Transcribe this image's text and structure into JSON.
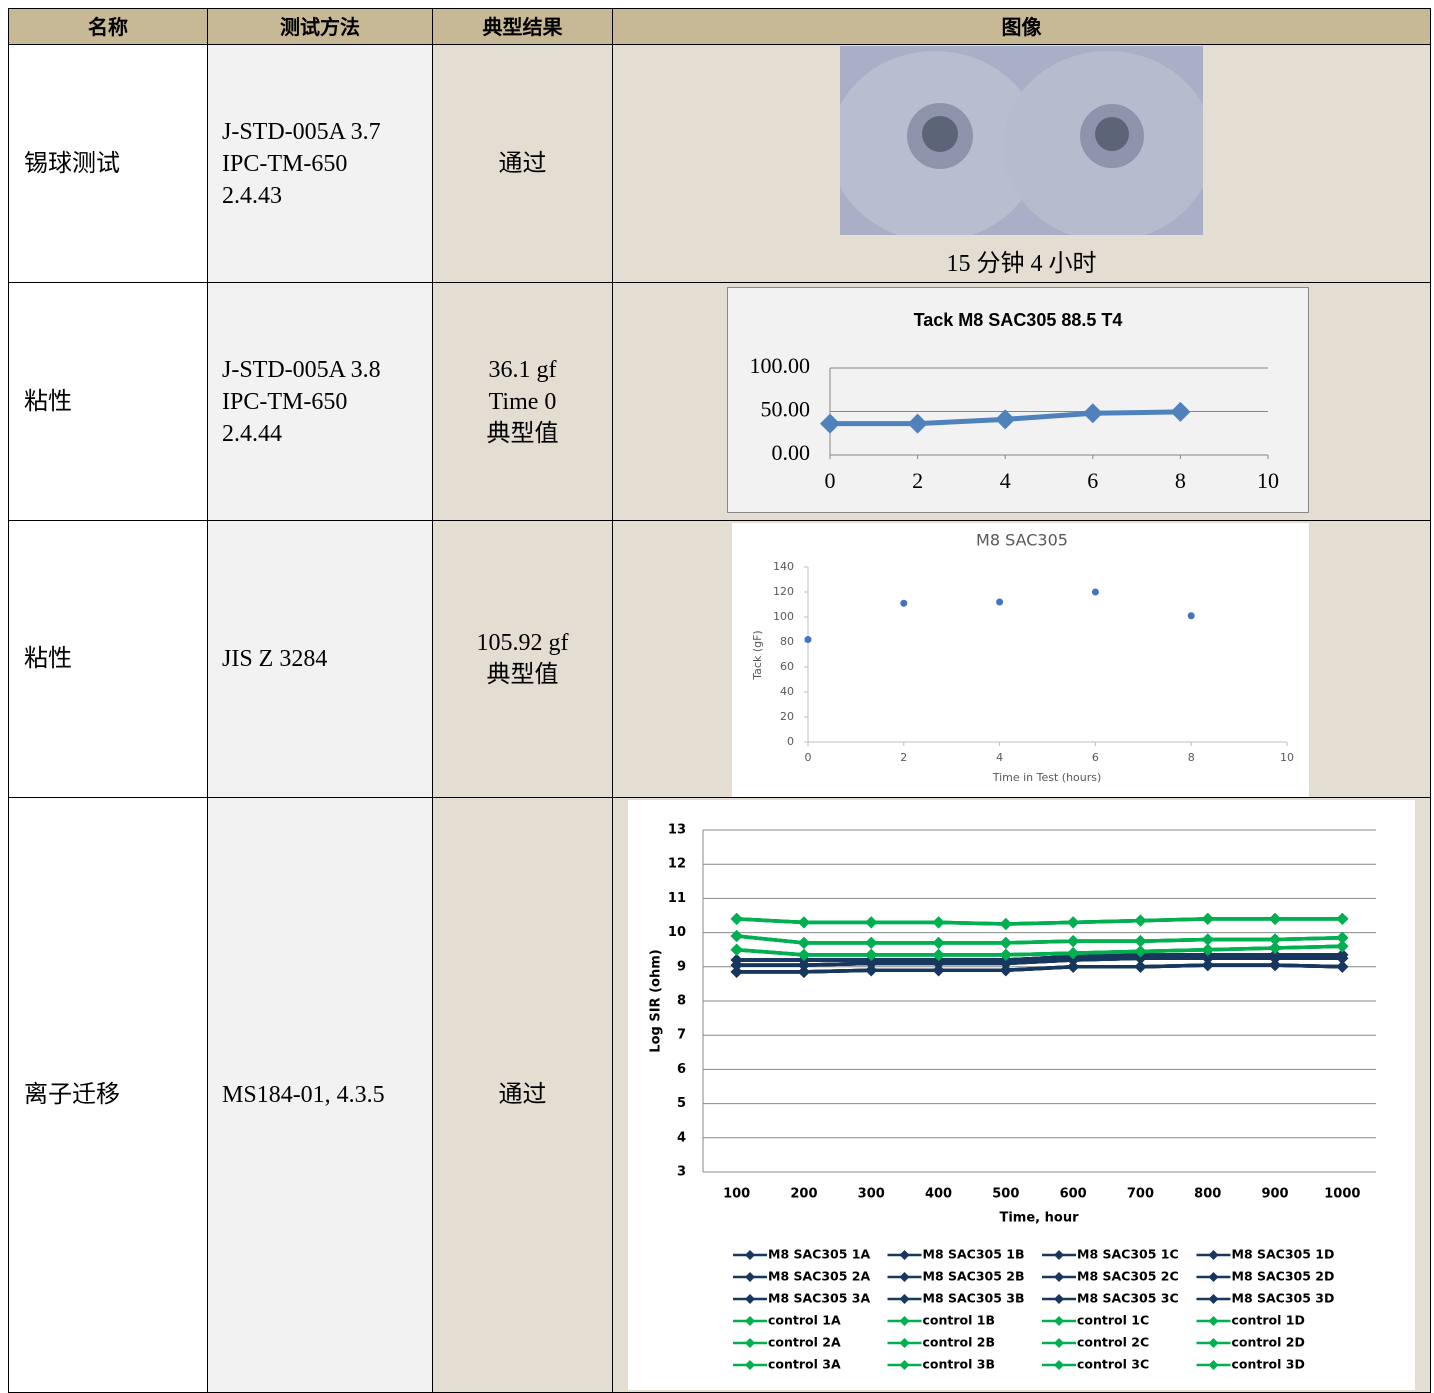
{
  "table": {
    "headers": [
      "名称",
      "测试方法",
      "典型结果",
      "图像"
    ],
    "rows": [
      {
        "name": "锡球测试",
        "method": [
          "J-STD-005A 3.7",
          "IPC-TM-650",
          "2.4.43"
        ],
        "result": [
          "通过"
        ],
        "image_caption": "15 分钟 4 小时"
      },
      {
        "name": "粘性",
        "method": [
          "J-STD-005A 3.8",
          "IPC-TM-650",
          "2.4.44"
        ],
        "result": [
          "36.1 gf",
          "Time 0",
          "典型值"
        ]
      },
      {
        "name": "粘性",
        "method": [
          "JIS Z 3284"
        ],
        "result": [
          "105.92 gf",
          "典型值"
        ]
      },
      {
        "name": "离子迁移",
        "method": [
          "MS184-01, 4.3.5"
        ],
        "result": [
          "通过"
        ]
      }
    ]
  },
  "chart_data": [
    {
      "type": "line",
      "title": "Tack M8 SAC305 88.5 T4",
      "x": [
        0,
        2,
        4,
        6,
        8
      ],
      "values": [
        36.1,
        36,
        41,
        48,
        49.5
      ],
      "color": "#4f81bd",
      "marker": "diamond",
      "xlim": [
        0,
        10
      ],
      "xticks": [
        0,
        2,
        4,
        6,
        8,
        10
      ],
      "ylim": [
        0,
        100
      ],
      "yticks": [
        {
          "value": 0,
          "label": "0.00"
        },
        {
          "value": 50,
          "label": "50.00"
        },
        {
          "value": 100,
          "label": "100.00"
        }
      ],
      "grid": true
    },
    {
      "type": "scatter",
      "title": "M8 SAC305",
      "x": [
        0,
        2,
        4,
        6,
        8
      ],
      "values": [
        82,
        111,
        112,
        120,
        101
      ],
      "color": "#4472c4",
      "marker": "circle",
      "x_label": "Time in Test (hours)",
      "y_label": "Tack (gF)",
      "xlim": [
        0,
        10
      ],
      "xticks": [
        0,
        2,
        4,
        6,
        8,
        10
      ],
      "ylim": [
        0,
        140
      ],
      "yticks": [
        0,
        20,
        40,
        60,
        80,
        100,
        120,
        140
      ],
      "grid": false
    },
    {
      "type": "line",
      "x_label": "Time, hour",
      "y_label": "Log SIR (ohm)",
      "marker": "diamond",
      "categories": [
        100,
        200,
        300,
        400,
        500,
        600,
        700,
        800,
        900,
        1000
      ],
      "ylim": [
        3,
        13
      ],
      "yticks": [
        3,
        4,
        5,
        6,
        7,
        8,
        9,
        10,
        11,
        12,
        13
      ],
      "grid": true,
      "series": [
        {
          "name": "M8 SAC305 1A",
          "color": "#17375e",
          "values": [
            9.2,
            9.2,
            9.2,
            9.2,
            9.2,
            9.3,
            9.35,
            9.35,
            9.35,
            9.35
          ]
        },
        {
          "name": "M8 SAC305 1B",
          "color": "#17375e",
          "values": [
            9.2,
            9.2,
            9.2,
            9.2,
            9.2,
            9.3,
            9.35,
            9.35,
            9.35,
            9.35
          ]
        },
        {
          "name": "M8 SAC305 1C",
          "color": "#17375e",
          "values": [
            9.2,
            9.2,
            9.2,
            9.2,
            9.2,
            9.3,
            9.35,
            9.35,
            9.35,
            9.35
          ]
        },
        {
          "name": "M8 SAC305 1D",
          "color": "#17375e",
          "values": [
            9.2,
            9.2,
            9.2,
            9.2,
            9.2,
            9.3,
            9.35,
            9.35,
            9.35,
            9.35
          ]
        },
        {
          "name": "M8 SAC305 2A",
          "color": "#17375e",
          "values": [
            9.05,
            9.05,
            9.1,
            9.1,
            9.1,
            9.2,
            9.25,
            9.25,
            9.25,
            9.25
          ]
        },
        {
          "name": "M8 SAC305 2B",
          "color": "#17375e",
          "values": [
            9.05,
            9.05,
            9.1,
            9.1,
            9.1,
            9.2,
            9.25,
            9.25,
            9.25,
            9.25
          ]
        },
        {
          "name": "M8 SAC305 2C",
          "color": "#17375e",
          "values": [
            9.05,
            9.05,
            9.1,
            9.1,
            9.1,
            9.2,
            9.25,
            9.25,
            9.25,
            9.25
          ]
        },
        {
          "name": "M8 SAC305 2D",
          "color": "#17375e",
          "values": [
            9.05,
            9.05,
            9.1,
            9.1,
            9.1,
            9.2,
            9.25,
            9.25,
            9.25,
            9.25
          ]
        },
        {
          "name": "M8 SAC305 3A",
          "color": "#17375e",
          "values": [
            8.85,
            8.85,
            8.9,
            8.9,
            8.9,
            9.0,
            9.0,
            9.05,
            9.05,
            9.0
          ]
        },
        {
          "name": "M8 SAC305 3B",
          "color": "#17375e",
          "values": [
            8.85,
            8.85,
            8.9,
            8.9,
            8.9,
            9.0,
            9.0,
            9.05,
            9.05,
            9.0
          ]
        },
        {
          "name": "M8 SAC305 3C",
          "color": "#17375e",
          "values": [
            8.85,
            8.85,
            8.9,
            8.9,
            8.9,
            9.0,
            9.0,
            9.05,
            9.05,
            9.0
          ]
        },
        {
          "name": "M8 SAC305 3D",
          "color": "#17375e",
          "values": [
            8.85,
            8.85,
            8.9,
            8.9,
            8.9,
            9.0,
            9.0,
            9.05,
            9.05,
            9.0
          ]
        },
        {
          "name": "control 1A",
          "color": "#00b050",
          "values": [
            10.4,
            10.3,
            10.3,
            10.3,
            10.25,
            10.3,
            10.35,
            10.4,
            10.4,
            10.4
          ]
        },
        {
          "name": "control 1B",
          "color": "#00b050",
          "values": [
            10.4,
            10.3,
            10.3,
            10.3,
            10.25,
            10.3,
            10.35,
            10.4,
            10.4,
            10.4
          ]
        },
        {
          "name": "control 1C",
          "color": "#00b050",
          "values": [
            10.4,
            10.3,
            10.3,
            10.3,
            10.25,
            10.3,
            10.35,
            10.4,
            10.4,
            10.4
          ]
        },
        {
          "name": "control 1D",
          "color": "#00b050",
          "values": [
            10.4,
            10.3,
            10.3,
            10.3,
            10.25,
            10.3,
            10.35,
            10.4,
            10.4,
            10.4
          ]
        },
        {
          "name": "control 2A",
          "color": "#00b050",
          "values": [
            9.9,
            9.7,
            9.7,
            9.7,
            9.7,
            9.75,
            9.75,
            9.8,
            9.8,
            9.85
          ]
        },
        {
          "name": "control 2B",
          "color": "#00b050",
          "values": [
            9.9,
            9.7,
            9.7,
            9.7,
            9.7,
            9.75,
            9.75,
            9.8,
            9.8,
            9.85
          ]
        },
        {
          "name": "control 2C",
          "color": "#00b050",
          "values": [
            9.9,
            9.7,
            9.7,
            9.7,
            9.7,
            9.75,
            9.75,
            9.8,
            9.8,
            9.85
          ]
        },
        {
          "name": "control 2D",
          "color": "#00b050",
          "values": [
            9.9,
            9.7,
            9.7,
            9.7,
            9.7,
            9.75,
            9.75,
            9.8,
            9.8,
            9.85
          ]
        },
        {
          "name": "control 3A",
          "color": "#00b050",
          "values": [
            9.5,
            9.35,
            9.35,
            9.35,
            9.35,
            9.4,
            9.45,
            9.5,
            9.55,
            9.6
          ]
        },
        {
          "name": "control 3B",
          "color": "#00b050",
          "values": [
            9.5,
            9.35,
            9.35,
            9.35,
            9.35,
            9.4,
            9.45,
            9.5,
            9.55,
            9.6
          ]
        },
        {
          "name": "control 3C",
          "color": "#00b050",
          "values": [
            9.5,
            9.35,
            9.35,
            9.35,
            9.35,
            9.4,
            9.45,
            9.5,
            9.55,
            9.6
          ]
        },
        {
          "name": "control 3D",
          "color": "#00b050",
          "values": [
            9.5,
            9.35,
            9.35,
            9.35,
            9.35,
            9.4,
            9.45,
            9.5,
            9.55,
            9.6
          ]
        }
      ]
    }
  ]
}
